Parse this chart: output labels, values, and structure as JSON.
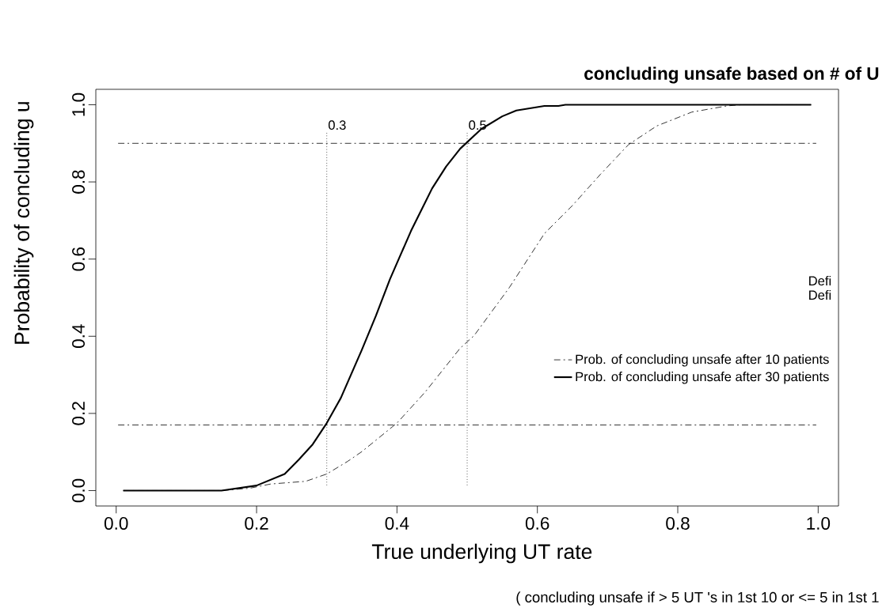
{
  "chart_data": {
    "type": "line",
    "title": "concluding unsafe based on # of U",
    "xlabel": "True underlying UT rate",
    "ylabel": "Probability of concluding u",
    "annotations": [
      "( concluding unsafe  if > 5 UT 's in 1st 10 or <= 5 in 1st 1",
      "Defi",
      "Defi"
    ],
    "xlim": [
      -0.029,
      1.029
    ],
    "ylim": [
      -0.04,
      1.04
    ],
    "xticks": [
      {
        "value": 0,
        "label": "0.0"
      },
      0.2,
      0.4,
      0.6,
      0.8,
      {
        "value": 1,
        "label": "1.0"
      }
    ],
    "yticks": [
      {
        "value": 0,
        "label": "0.0"
      },
      0.2,
      0.4,
      0.6,
      0.8,
      {
        "value": 1,
        "label": "1.0"
      }
    ],
    "legend": "right",
    "series": [
      {
        "name": "Prob. of concluding unsafe after 10 patients",
        "color": "#000000",
        "line_style": "dashed",
        "x": [
          0.01,
          0.15,
          0.19,
          0.22,
          0.27,
          0.3,
          0.33,
          0.35,
          0.4,
          0.44,
          0.49,
          0.51,
          0.56,
          0.61,
          0.65,
          0.69,
          0.73,
          0.77,
          0.82,
          0.87,
          0.89,
          0.99
        ],
        "values": [
          0,
          0,
          0.006,
          0.017,
          0.024,
          0.043,
          0.076,
          0.101,
          0.175,
          0.255,
          0.369,
          0.402,
          0.526,
          0.666,
          0.739,
          0.82,
          0.897,
          0.945,
          0.981,
          0.997,
          1.0,
          1.0
        ]
      },
      {
        "name": "Prob. of concluding unsafe after 30 patients",
        "color": "#000000",
        "line_style": "solid",
        "x": [
          0.01,
          0.15,
          0.2,
          0.24,
          0.26,
          0.28,
          0.3,
          0.32,
          0.35,
          0.37,
          0.39,
          0.42,
          0.45,
          0.47,
          0.49,
          0.52,
          0.55,
          0.57,
          0.61,
          0.63,
          0.64,
          0.99
        ],
        "values": [
          0,
          0,
          0.013,
          0.043,
          0.08,
          0.12,
          0.175,
          0.24,
          0.365,
          0.453,
          0.548,
          0.673,
          0.783,
          0.84,
          0.886,
          0.937,
          0.97,
          0.985,
          0.997,
          0.997,
          1.0,
          1.0
        ]
      }
    ],
    "ref_lines": [
      {
        "axis": "y",
        "value": 0.9,
        "line_style": "dashed"
      },
      {
        "axis": "y",
        "value": 0.17,
        "line_style": "dashed"
      },
      {
        "axis": "x",
        "value": 0.3,
        "label": "0.3",
        "line_style": "dotted"
      },
      {
        "axis": "x",
        "value": 0.5,
        "label": "0.5",
        "line_style": "dotted"
      }
    ]
  }
}
